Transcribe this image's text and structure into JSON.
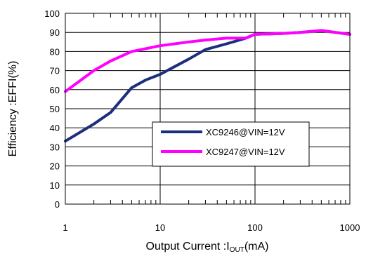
{
  "chart_data": {
    "type": "line",
    "xscale": "log",
    "xlim": [
      1,
      1000
    ],
    "ylim": [
      0,
      100
    ],
    "grid": true,
    "legend_placement": "center-right",
    "xlabel": {
      "prefix": "Output Current :I",
      "subscript": "OUT",
      "suffix": "(mA)"
    },
    "ylabel": "Efficiency :EFFI(%)",
    "x_ticks": [
      1,
      10,
      100,
      1000
    ],
    "x_tick_labels": [
      "1",
      "10",
      "100",
      "1000"
    ],
    "y_ticks": [
      0,
      10,
      20,
      30,
      40,
      50,
      60,
      70,
      80,
      90,
      100
    ],
    "y_tick_labels": [
      "0",
      "10",
      "20",
      "30",
      "40",
      "50",
      "60",
      "70",
      "80",
      "90",
      "100"
    ],
    "series": [
      {
        "name": "XC9246@VIN=12V",
        "color": "#1c2f7c",
        "x": [
          1,
          2,
          3,
          5,
          7,
          10,
          20,
          30,
          50,
          80,
          100,
          200,
          300,
          500,
          700,
          1000
        ],
        "y": [
          33,
          42,
          48,
          61,
          65,
          68,
          76,
          81,
          84,
          87,
          89,
          89.5,
          90,
          91,
          90,
          89
        ]
      },
      {
        "name": "XC9247@VIN=12V",
        "color": "#ff00ff",
        "x": [
          1,
          2,
          3,
          5,
          10,
          20,
          30,
          50,
          80,
          100,
          200,
          300,
          500,
          700,
          1000
        ],
        "y": [
          59,
          70,
          75,
          80,
          83,
          85,
          86,
          87,
          87,
          89,
          89.5,
          90,
          91,
          90,
          89
        ]
      }
    ]
  }
}
